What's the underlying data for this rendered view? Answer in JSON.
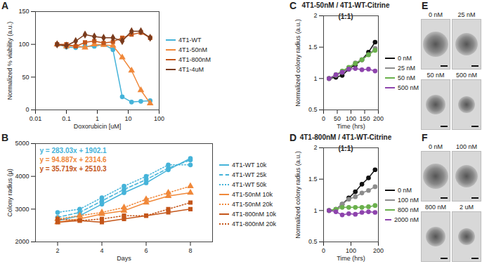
{
  "chart_data": [
    {
      "panel": "A",
      "type": "line",
      "log": "x",
      "grid": false,
      "legend": "right",
      "x_label": "Doxorubicin [uM]",
      "y_label": "Normalized % viability (a.u.)",
      "xlim": [
        0.01,
        100
      ],
      "xticks": [
        0.01,
        0.1,
        1,
        10,
        100
      ],
      "ylim": [
        0,
        150
      ],
      "yticks": [
        0,
        50,
        100,
        150
      ],
      "x": [
        0.05,
        0.1,
        0.2,
        0.4,
        0.8,
        1.6,
        3.2,
        6.4,
        12.8,
        25.6,
        51.2
      ],
      "series": [
        {
          "name": "4T1-WT",
          "color": "#45b3d9",
          "marker": "circle",
          "line_style": "solid",
          "values": [
            100,
            96,
            95,
            97,
            97,
            100,
            92,
            20,
            12,
            13,
            14
          ]
        },
        {
          "name": "4T1-50nM",
          "color": "#f0883a",
          "marker": "triangle",
          "line_style": "solid",
          "values": [
            100,
            97,
            98,
            95,
            100,
            99,
            98,
            80,
            60,
            30,
            10
          ]
        },
        {
          "name": "4T1-800nM",
          "color": "#c4561a",
          "marker": "square",
          "line_style": "solid",
          "values": [
            100,
            100,
            97,
            103,
            105,
            102,
            104,
            110,
            115,
            118,
            110
          ]
        },
        {
          "name": "4T1-4uM",
          "color": "#7a3b1d",
          "marker": "diamond",
          "line_style": "solid",
          "values": [
            100,
            98,
            105,
            115,
            112,
            110,
            110,
            105,
            120,
            120,
            110
          ]
        }
      ]
    },
    {
      "panel": "B",
      "type": "line",
      "grid": false,
      "legend": "right",
      "x_label": "Days",
      "y_label": "Colony radius (µ)",
      "xlim": [
        1,
        9
      ],
      "xticks": [
        2,
        4,
        6,
        8
      ],
      "ylim": [
        2000,
        5000
      ],
      "yticks": [
        2000,
        3000,
        4000,
        5000
      ],
      "x": [
        2,
        3,
        4,
        5,
        6,
        7,
        8
      ],
      "annotations": [
        {
          "text": "y = 283.03x + 1902.1",
          "color": "#45b3d9"
        },
        {
          "text": "y = 94.887x + 2314.6",
          "color": "#f0883a"
        },
        {
          "text": "y = 35.719x + 2510.3",
          "color": "#c4561a"
        }
      ],
      "series": [
        {
          "name": "4T1-WT 10k",
          "color": "#45b3d9",
          "marker": "circle",
          "line_style": "solid",
          "values": [
            2650,
            2800,
            3150,
            3500,
            3800,
            4200,
            4550
          ]
        },
        {
          "name": "4T1-WT 25k",
          "color": "#45b3d9",
          "marker": "circle",
          "line_style": "dashed",
          "values": [
            2750,
            2900,
            3250,
            3600,
            3900,
            4250,
            4500
          ]
        },
        {
          "name": "4T1-WT 50k",
          "color": "#45b3d9",
          "marker": "circle",
          "line_style": "dotted",
          "values": [
            2900,
            3000,
            3350,
            3700,
            4000,
            4350,
            4350
          ]
        },
        {
          "name": "4T1-50nM 10k",
          "color": "#f0883a",
          "marker": "triangle",
          "line_style": "solid",
          "values": [
            2600,
            2700,
            2850,
            2950,
            3200,
            3400,
            3500
          ]
        },
        {
          "name": "4T1-50nM 20k",
          "color": "#f0883a",
          "marker": "triangle",
          "line_style": "dotted",
          "values": [
            2700,
            2800,
            2900,
            3050,
            3300,
            3500,
            3700
          ]
        },
        {
          "name": "4T1-800nM 10k",
          "color": "#c4561a",
          "marker": "square",
          "line_style": "solid",
          "values": [
            2600,
            2650,
            2600,
            2700,
            2800,
            2900,
            3000
          ]
        },
        {
          "name": "4T1-800nM 20k",
          "color": "#c4561a",
          "marker": "square",
          "line_style": "dotted",
          "values": [
            2700,
            2650,
            2700,
            2800,
            2800,
            3000,
            3200
          ]
        }
      ]
    },
    {
      "panel": "C",
      "type": "line",
      "grid": false,
      "legend": "right",
      "title": "4T1-50nM / 4T1-WT-Citrine (1:1)",
      "x_label": "Time (hrs)",
      "y_label": "Normalized colony radius (a.u.)",
      "xlim": [
        0,
        200
      ],
      "xticks": [
        0,
        50,
        100,
        150,
        200
      ],
      "ylim": [
        0.5,
        2
      ],
      "yticks": [
        0.5,
        1,
        1.5,
        2
      ],
      "x": [
        20,
        45,
        68,
        92,
        116,
        140,
        164,
        188
      ],
      "series": [
        {
          "name": "0 nM",
          "color": "#111111",
          "marker": "circle",
          "line_style": "solid",
          "values": [
            1,
            1.02,
            1.05,
            1.15,
            1.22,
            1.3,
            1.42,
            1.58
          ]
        },
        {
          "name": "25 nM",
          "color": "#8c8c8c",
          "marker": "circle",
          "line_style": "solid",
          "values": [
            1,
            1.05,
            1.1,
            1.17,
            1.25,
            1.3,
            1.38,
            1.48
          ]
        },
        {
          "name": "50 nM",
          "color": "#6ab04c",
          "marker": "circle",
          "line_style": "solid",
          "values": [
            1,
            1.06,
            1.12,
            1.18,
            1.24,
            1.3,
            1.38,
            1.45
          ]
        },
        {
          "name": "500 nM",
          "color": "#8e44ad",
          "marker": "circle",
          "line_style": "solid",
          "values": [
            1,
            1.06,
            1.1,
            1.15,
            1.16,
            1.14,
            1.15,
            1.12
          ]
        }
      ]
    },
    {
      "panel": "D",
      "type": "line",
      "grid": false,
      "legend": "right",
      "title": "4T1-800nM / 4T1-WT-Citrine (1:1)",
      "x_label": "Time (hrs)",
      "y_label": "Normalized colony radius (a.u.)",
      "xlim": [
        0,
        200
      ],
      "xticks": [
        0,
        100,
        200
      ],
      "ylim": [
        0.5,
        2
      ],
      "yticks": [
        0.5,
        1,
        1.5,
        2
      ],
      "x": [
        20,
        45,
        68,
        92,
        116,
        140,
        164,
        188
      ],
      "series": [
        {
          "name": "0 nM",
          "color": "#111111",
          "marker": "circle",
          "line_style": "solid",
          "values": [
            1,
            1.02,
            1.1,
            1.2,
            1.3,
            1.42,
            1.52,
            1.65
          ]
        },
        {
          "name": "100 nM",
          "color": "#8c8c8c",
          "marker": "circle",
          "line_style": "solid",
          "values": [
            1,
            1.02,
            1.1,
            1.18,
            1.22,
            1.28,
            1.32,
            1.38
          ]
        },
        {
          "name": "800 nM",
          "color": "#6ab04c",
          "marker": "circle",
          "line_style": "solid",
          "values": [
            1,
            1.02,
            1.05,
            1.05,
            1.05,
            1.05,
            1.06,
            1.08
          ]
        },
        {
          "name": "2000 nM",
          "color": "#8e44ad",
          "marker": "circle",
          "line_style": "solid",
          "values": [
            1,
            0.98,
            0.93,
            0.95,
            0.94,
            0.97,
            0.98,
            0.97
          ]
        }
      ]
    }
  ],
  "images": [
    {
      "panel": "E",
      "labels": [
        "0 nM",
        "25 nM",
        "50 nM",
        "500 nM"
      ]
    },
    {
      "panel": "F",
      "labels": [
        "0 nM",
        "100 nM",
        "800 nM",
        "2 uM"
      ]
    }
  ]
}
